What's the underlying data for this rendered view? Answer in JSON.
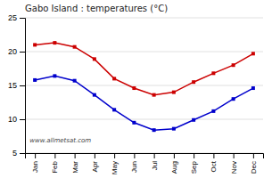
{
  "chart_data": {
    "type": "line",
    "title": "Gabo Island : temperatures (°C)",
    "categories": [
      "Jan",
      "Feb",
      "Mar",
      "Apr",
      "May",
      "Jun",
      "Jul",
      "Aug",
      "Sep",
      "Oct",
      "Nov",
      "Dec"
    ],
    "series": [
      {
        "color": "#cc0000",
        "marker": "square",
        "values": [
          21.0,
          21.3,
          20.7,
          18.9,
          16.0,
          14.6,
          13.6,
          14.0,
          15.5,
          16.8,
          18.0,
          19.7
        ]
      },
      {
        "color": "#0000cc",
        "marker": "square",
        "values": [
          15.8,
          16.4,
          15.7,
          13.6,
          11.4,
          9.5,
          8.4,
          8.6,
          9.9,
          11.2,
          13.0,
          14.6
        ]
      }
    ],
    "ylim": [
      5,
      25
    ],
    "yticks": [
      5,
      10,
      15,
      20,
      25
    ],
    "grid": true,
    "annotation": "www.allmetsat.com"
  }
}
